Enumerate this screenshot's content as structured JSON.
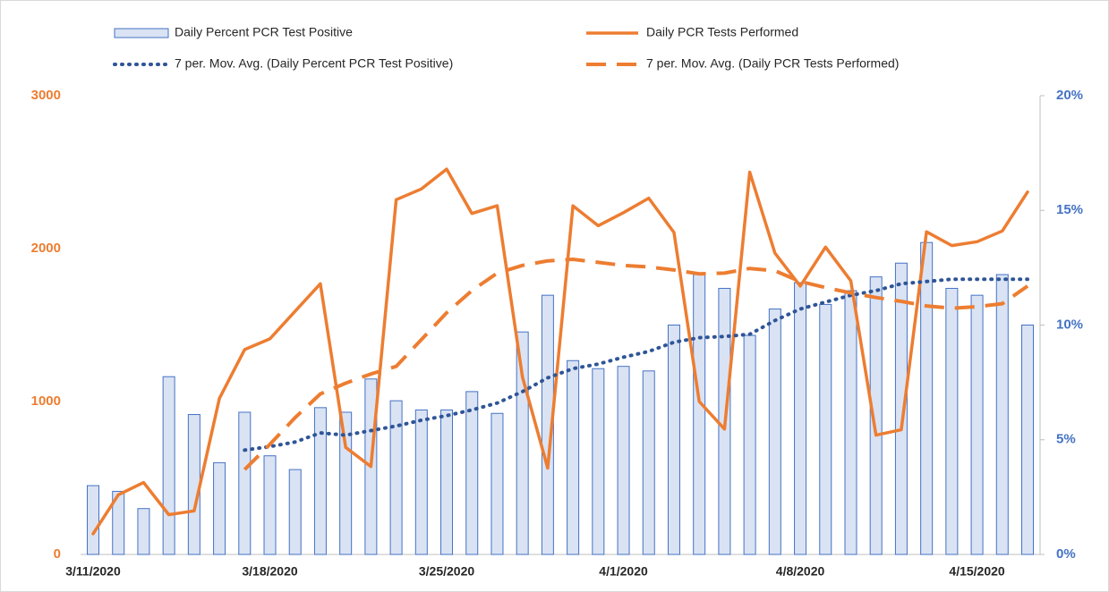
{
  "chart_data": {
    "type": "combo",
    "categories": [
      "3/11/2020",
      null,
      null,
      null,
      null,
      null,
      null,
      "3/18/2020",
      null,
      null,
      null,
      null,
      null,
      null,
      "3/25/2020",
      null,
      null,
      null,
      null,
      null,
      null,
      "4/1/2020",
      null,
      null,
      null,
      null,
      null,
      null,
      "4/8/2020",
      null,
      null,
      null,
      null,
      null,
      null,
      "4/15/2020",
      null,
      null
    ],
    "ylim": [
      0,
      3000
    ],
    "yticks": [
      0,
      1000,
      2000,
      3000
    ],
    "y2lim": [
      0,
      20
    ],
    "y2ticks": [
      {
        "value": 0,
        "label": "0%"
      },
      {
        "value": 5,
        "label": "5%"
      },
      {
        "value": 10,
        "label": "10%"
      },
      {
        "value": 15,
        "label": "15%"
      },
      {
        "value": 20,
        "label": "20%"
      }
    ],
    "grid": false,
    "legend": "top",
    "series": [
      {
        "name": "Daily Percent PCR Test Positive",
        "type": "bar",
        "axis": "y2",
        "color": "#dae3f3",
        "stroke": "#4472c4",
        "values": [
          3.0,
          2.75,
          2.0,
          7.75,
          6.1,
          4.0,
          6.2,
          4.3,
          3.7,
          6.4,
          6.2,
          7.65,
          6.7,
          6.3,
          6.3,
          7.1,
          6.15,
          9.7,
          11.3,
          8.45,
          8.1,
          8.2,
          8.0,
          10.0,
          12.2,
          11.6,
          9.55,
          10.7,
          11.85,
          10.9,
          11.5,
          12.1,
          12.7,
          13.6,
          11.6,
          11.3,
          12.2,
          10.0
        ]
      },
      {
        "name": "Daily PCR Tests Performed",
        "type": "line",
        "dash": "solid",
        "color": "#ed7d31",
        "values": [
          135,
          390,
          470,
          260,
          285,
          1020,
          1340,
          1410,
          1590,
          1770,
          700,
          575,
          2320,
          2390,
          2520,
          2230,
          2280,
          1160,
          565,
          2280,
          2150,
          2235,
          2330,
          2105,
          1000,
          820,
          2500,
          1970,
          1755,
          2010,
          1790,
          780,
          815,
          2110,
          2020,
          2045,
          2115,
          2370
        ]
      },
      {
        "name": "7 per. Mov. Avg. (Daily Percent PCR Test Positive)",
        "type": "line",
        "dash": "dotted",
        "axis": "y2",
        "color": "#2f5597",
        "values": [
          null,
          null,
          null,
          null,
          null,
          null,
          4.55,
          4.7,
          4.9,
          5.3,
          5.2,
          5.4,
          5.6,
          5.85,
          6.05,
          6.3,
          6.6,
          7.1,
          7.7,
          8.1,
          8.3,
          8.6,
          8.85,
          9.25,
          9.45,
          9.5,
          9.6,
          10.2,
          10.7,
          11.0,
          11.3,
          11.5,
          11.8,
          11.9,
          12.0,
          12.0,
          12.0,
          12.0
        ]
      },
      {
        "name": "7 per. Mov. Avg. (Daily PCR Tests Performed)",
        "type": "line",
        "dash": "dashed",
        "color": "#ed7d31",
        "values": [
          null,
          null,
          null,
          null,
          null,
          null,
          555,
          720,
          895,
          1050,
          1120,
          1180,
          1230,
          1405,
          1580,
          1725,
          1840,
          1890,
          1920,
          1930,
          1910,
          1890,
          1880,
          1860,
          1835,
          1840,
          1870,
          1855,
          1785,
          1745,
          1710,
          1680,
          1655,
          1625,
          1610,
          1620,
          1640,
          1755
        ]
      }
    ]
  }
}
